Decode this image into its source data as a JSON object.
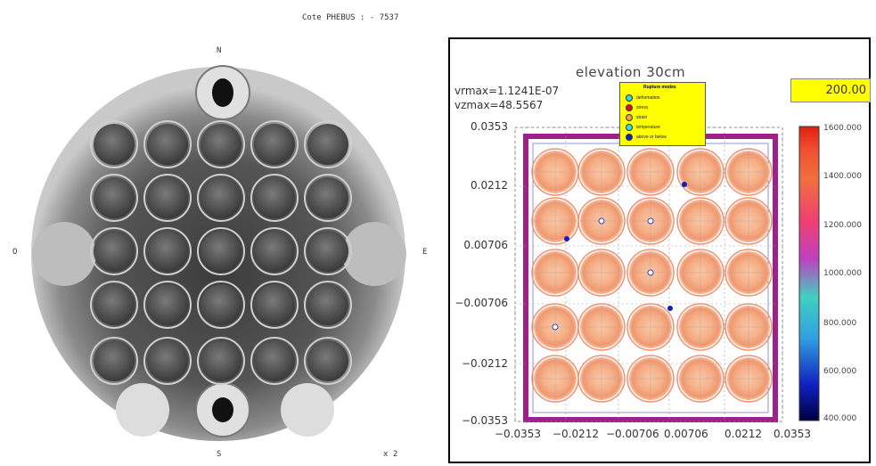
{
  "photo": {
    "caption": "Cote PHEBUS : - 7537",
    "compass": {
      "north": "N",
      "south": "S",
      "east": "E",
      "west": "O"
    },
    "magnification": "x 2"
  },
  "simulation": {
    "title": "elevation 30cm",
    "vrmax": "vrmax=1.1241E-07",
    "vzmax": "vzmax=48.5567",
    "time_value": "200.00",
    "legend": {
      "title": "Rupture modes",
      "items": [
        {
          "label": "deformation",
          "color": "#20e0e0"
        },
        {
          "label": "stress",
          "color": "#e01010"
        },
        {
          "label": "strain",
          "color": "#f0a040"
        },
        {
          "label": "temperature",
          "color": "#20e8e8"
        },
        {
          "label": "above or below",
          "color": "#1020c0"
        }
      ]
    },
    "y_ticks": [
      "0.0353",
      "0.0212",
      "0.00706",
      "−0.00706",
      "−0.0212",
      "−0.0353"
    ],
    "x_ticks": [
      "−0.0353",
      "−0.0212",
      "−0.00706",
      "0.00706",
      "0.0212",
      "0.0353"
    ],
    "colorbar": {
      "ticks": [
        "1600.000",
        "1400.000",
        "1200.000",
        "1000.000",
        "800.000",
        "600.000",
        "400.000"
      ],
      "colors": [
        "#000040",
        "#1020c0",
        "#30a0e0",
        "#40d0c0",
        "#c040c0",
        "#f04070",
        "#f07040",
        "#f05030",
        "#e02010"
      ]
    }
  }
}
